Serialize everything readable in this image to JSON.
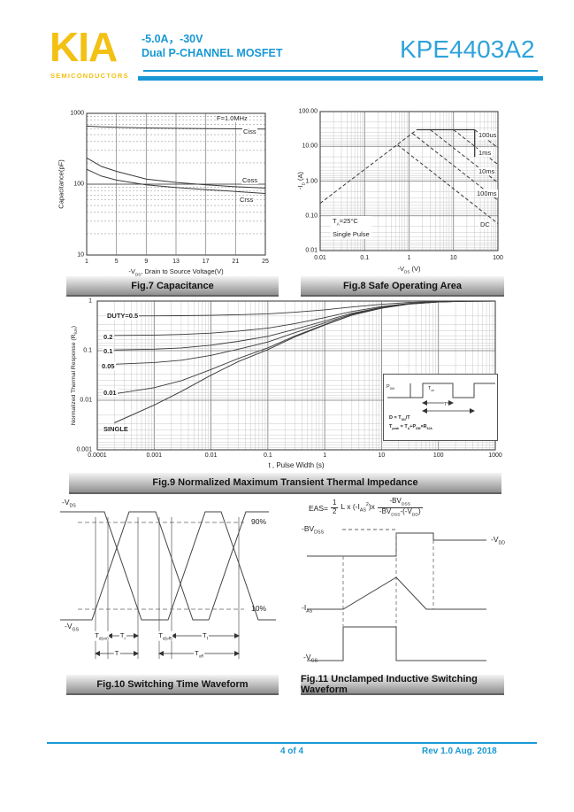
{
  "header": {
    "logo": "KIA",
    "logo_sub": "SEMICONDUCTORS",
    "rating": "-5.0A，-30V",
    "device_type": "Dual P-CHANNEL MOSFET",
    "part_number": "KPE4403A2"
  },
  "footer": {
    "page": "4 of 4",
    "revision": "Rev 1.0 Aug. 2018"
  },
  "colors": {
    "accent_cyan": "#1898d4",
    "logo_yellow": "#f2c113"
  },
  "fig7": {
    "caption": "Fig.7 Capacitance",
    "ylabel": "Capacitance(pF)",
    "xlabel": {
      "a": "-V",
      "sub": "DS",
      "b": ", Drain to Source Voltage(V)"
    },
    "y_ticks": [
      "1000",
      "100",
      "10"
    ],
    "x_ticks": [
      "1",
      "5",
      "9",
      "13",
      "17",
      "21",
      "25"
    ],
    "labels": {
      "freq": "F=1.0MHz",
      "ciss": "Ciss",
      "coss": "Coss",
      "crss": "Crss"
    }
  },
  "fig8": {
    "caption": "Fig.8 Safe Operating Area",
    "ylabel": {
      "a": "-I",
      "sub": "D",
      "b": " (A)"
    },
    "xlabel": {
      "a": "-V",
      "sub": "DS",
      "b": " (V)"
    },
    "y_ticks": [
      "100.00",
      "10.00",
      "1.00",
      "0.10",
      "0.01"
    ],
    "x_ticks": [
      "0.01",
      "0.1",
      "1",
      "10",
      "100"
    ],
    "curve_labels": [
      "100us",
      "1ms",
      "10ms",
      "100ms",
      "DC"
    ],
    "note": {
      "a": "T",
      "sub": "A",
      "b": "=25°C",
      "line2": "Single Pulse"
    }
  },
  "fig9": {
    "caption": "Fig.9 Normalized Maximum Transient Thermal Impedance",
    "ylabel": {
      "a": "Normalized Thermal Response (R",
      "sub": "θJA",
      "b": ")"
    },
    "xlabel": "t , Pulse Width (s)",
    "y_ticks": [
      "1",
      "0.1",
      "0.01",
      "0.001"
    ],
    "x_ticks": [
      "0.0001",
      "0.001",
      "0.01",
      "0.1",
      "1",
      "10",
      "100",
      "1000"
    ],
    "duty_labels": [
      "DUTY=0.5",
      "0.2",
      "0.1",
      "0.05",
      "0.01",
      "SINGLE"
    ],
    "inset": {
      "p": {
        "a": "P",
        "sub": "DM"
      },
      "ton": {
        "a": "T",
        "sub": "ON"
      },
      "t": "T",
      "f1": {
        "a": "D = T",
        "sub": "ON",
        "b": "/T"
      },
      "f2": {
        "a": "T",
        "s1": "peak",
        "b": " = T",
        "s2": "A",
        "c": "+P",
        "s3": "DM",
        "d": "×R",
        "s4": "θJA"
      }
    }
  },
  "fig10": {
    "caption": "Fig.10 Switching Time Waveform",
    "vds": {
      "a": "-V",
      "sub": "DS"
    },
    "vgs": {
      "a": "-V",
      "sub": "GS"
    },
    "p90": "90%",
    "p10": "10%",
    "td_on": {
      "a": "T",
      "sub": "d(on)"
    },
    "tr": {
      "a": "T",
      "sub": "r"
    },
    "td_off": {
      "a": "T",
      "sub": "d(off)"
    },
    "tf": {
      "a": "T",
      "sub": "f"
    },
    "ton": {
      "a": "T",
      "sub": "on"
    },
    "toff": {
      "a": "T",
      "sub": "off"
    }
  },
  "fig11": {
    "caption": "Fig.11 Unclamped Inductive Switching Waveform",
    "formula": {
      "lead": "EAS=",
      "num": "1",
      "den": "2",
      "m1": "L x (-I",
      "s1": "AS",
      "sup": "2",
      "m2": ")x",
      "na": "-BV",
      "ns": "DSS",
      "da": "-BV",
      "ds1": "DSS",
      "db": "-(-V",
      "ds2": "DD",
      "dc": ")"
    },
    "bvdss": {
      "a": "-BV",
      "sub": "DSS"
    },
    "vdd": {
      "a": "-V",
      "sub": "DD"
    },
    "ias": {
      "a": "-I",
      "sub": "AS"
    },
    "vgs": {
      "a": "-V",
      "sub": "GS"
    }
  },
  "chart_data": [
    {
      "figure": "Fig.7",
      "type": "line",
      "title": "Capacitance",
      "xlabel": "-VDS, Drain to Source Voltage(V)",
      "ylabel": "Capacitance(pF)",
      "x_scale": "linear",
      "y_scale": "log",
      "xlim": [
        1,
        25
      ],
      "ylim": [
        10,
        1000
      ],
      "condition": "F=1.0MHz",
      "x": [
        1,
        3,
        5,
        9,
        13,
        17,
        21,
        25
      ],
      "series": [
        {
          "name": "Ciss",
          "values": [
            660,
            645,
            635,
            622,
            615,
            610,
            605,
            600
          ]
        },
        {
          "name": "Coss",
          "values": [
            235,
            178,
            152,
            118,
            106,
            98,
            92,
            88
          ]
        },
        {
          "name": "Crss",
          "values": [
            162,
            130,
            114,
            98,
            90,
            84,
            79,
            74
          ]
        }
      ]
    },
    {
      "figure": "Fig.8",
      "type": "line",
      "title": "Safe Operating Area",
      "xlabel": "-VDS (V)",
      "ylabel": "-ID (A)",
      "x_scale": "log",
      "y_scale": "log",
      "xlim": [
        0.01,
        100
      ],
      "ylim": [
        0.01,
        100
      ],
      "note": "TA=25°C, Single Pulse",
      "series": [
        {
          "name": "RDS(on)-limit",
          "style": "dashed",
          "points": [
            [
              0.01,
              0.23
            ],
            [
              1.5,
              30
            ]
          ]
        },
        {
          "name": "package-limit",
          "style": "solid",
          "points": [
            [
              1.5,
              30
            ],
            [
              30,
              30
            ]
          ]
        },
        {
          "name": "BVDSS-limit",
          "style": "solid",
          "points": [
            [
              30,
              30
            ],
            [
              30,
              5
            ]
          ]
        },
        {
          "name": "100us",
          "style": "dashed",
          "points": [
            [
              30,
              30
            ],
            [
              100,
              9
            ]
          ]
        },
        {
          "name": "1ms",
          "style": "dashed",
          "points": [
            [
              10,
              30
            ],
            [
              100,
              3
            ]
          ]
        },
        {
          "name": "10ms",
          "style": "dashed",
          "points": [
            [
              3,
              30
            ],
            [
              100,
              0.9
            ]
          ]
        },
        {
          "name": "100ms",
          "style": "dashed",
          "points": [
            [
              1.2,
              23.5
            ],
            [
              100,
              0.28
            ]
          ]
        },
        {
          "name": "DC",
          "style": "dashed",
          "points": [
            [
              0.55,
              11
            ],
            [
              100,
              0.06
            ]
          ]
        }
      ]
    },
    {
      "figure": "Fig.9",
      "type": "line",
      "title": "Normalized Maximum Transient Thermal Impedance",
      "xlabel": "t, Pulse Width (s)",
      "ylabel": "Normalized Thermal Response (RθJA)",
      "x_scale": "log",
      "y_scale": "log",
      "xlim": [
        0.0001,
        1000
      ],
      "ylim": [
        0.001,
        1
      ],
      "duty_cycles": [
        0.5,
        0.2,
        0.1,
        0.05,
        0.01
      ],
      "single_pulse": [
        [
          0.0002,
          0.0035
        ],
        [
          0.001,
          0.008
        ],
        [
          0.003,
          0.015
        ],
        [
          0.01,
          0.032
        ],
        [
          0.03,
          0.06
        ],
        [
          0.1,
          0.105
        ],
        [
          0.3,
          0.19
        ],
        [
          1,
          0.33
        ],
        [
          3,
          0.52
        ],
        [
          10,
          0.72
        ],
        [
          30,
          0.87
        ],
        [
          100,
          0.96
        ],
        [
          300,
          0.99
        ],
        [
          1000,
          1.0
        ]
      ]
    }
  ]
}
